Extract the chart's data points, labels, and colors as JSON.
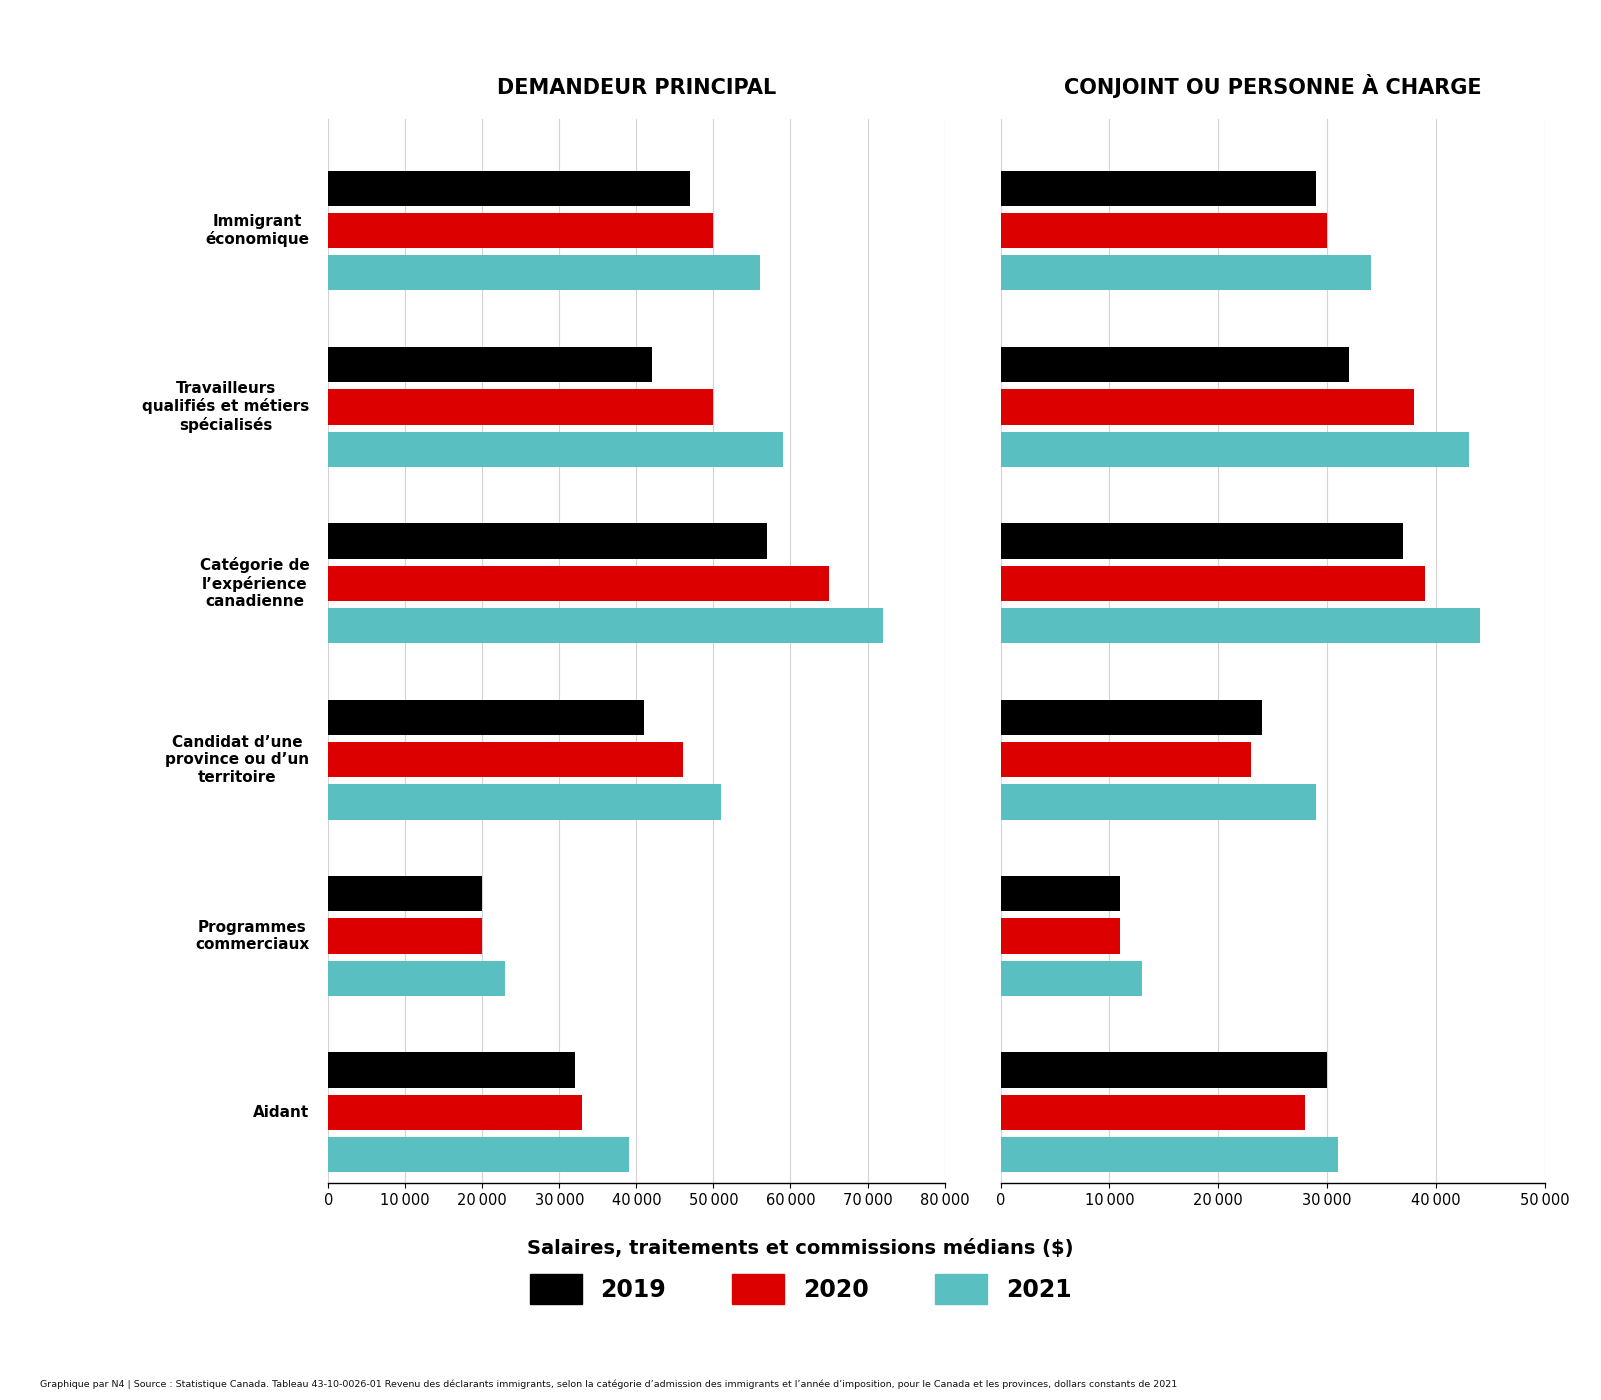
{
  "left_title": "DEMANDEUR PRINCIPAL",
  "right_title": "CONJOINT OU PERSONNE À CHARGE",
  "xlabel": "Salaires, traitements et commissions médians ($)",
  "categories": [
    "Immigrant\néconomique",
    "Travailleurs\nqualifiés et métiers\nspécialisés",
    "Catégorie de\nl’expérience\ncanadienne",
    "Candidat d’une\nprovince ou d’un\nterritoire",
    "Programmes\ncommerciaux",
    "Aidant"
  ],
  "left_values_2019": [
    47000,
    42000,
    57000,
    41000,
    20000,
    32000
  ],
  "left_values_2020": [
    50000,
    50000,
    65000,
    46000,
    20000,
    33000
  ],
  "left_values_2021": [
    56000,
    59000,
    72000,
    51000,
    23000,
    39000
  ],
  "right_values_2019": [
    29000,
    32000,
    37000,
    24000,
    11000,
    30000
  ],
  "right_values_2020": [
    30000,
    38000,
    39000,
    23000,
    11000,
    28000
  ],
  "right_values_2021": [
    34000,
    43000,
    44000,
    29000,
    13000,
    31000
  ],
  "color_2019": "#000000",
  "color_2020": "#dc0000",
  "color_2021": "#5abfc0",
  "left_xlim": 80000,
  "right_xlim": 50000,
  "left_xticks": [
    0,
    10000,
    20000,
    30000,
    40000,
    50000,
    60000,
    70000,
    80000
  ],
  "right_xticks": [
    0,
    10000,
    20000,
    30000,
    40000,
    50000
  ],
  "footnote": "Graphique par N4 | Source : Statistique Canada. Tableau 43-10-0026-01 Revenu des déclarants immigrants, selon la catégorie d’admission des immigrants et l’année d’imposition, pour le Canada et les provinces, dollars constants de 2021",
  "background_color": "#ffffff"
}
